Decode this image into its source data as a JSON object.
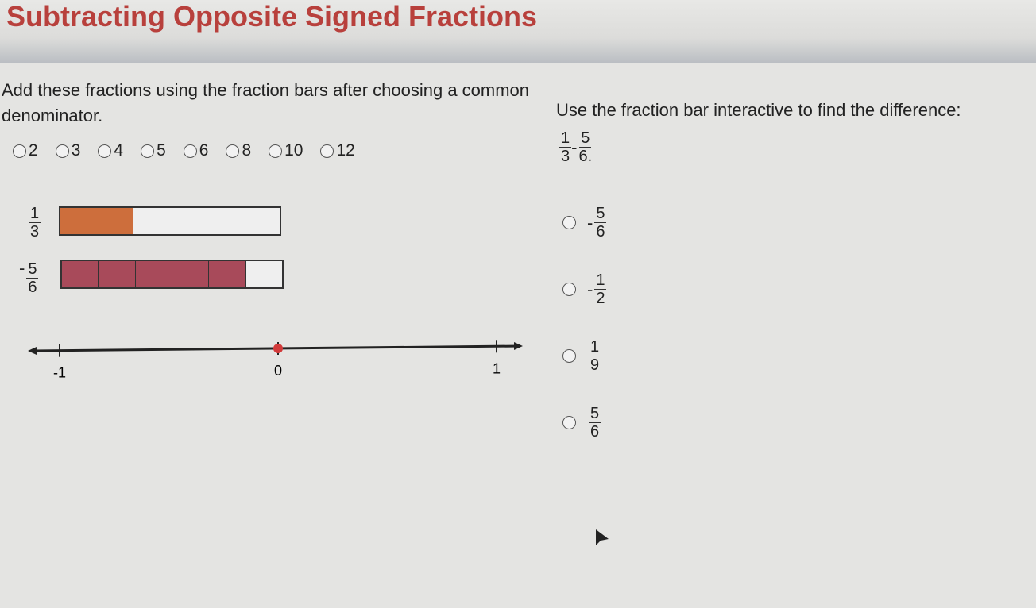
{
  "title": "Subtracting Opposite Signed Fractions",
  "instructions": "Add these fractions using the fraction bars after choosing a common denominator.",
  "denominators": [
    "2",
    "3",
    "4",
    "5",
    "6",
    "8",
    "10",
    "12"
  ],
  "bars": [
    {
      "label_sign": "",
      "num": "1",
      "den": "3",
      "parts": 3,
      "filled": 1,
      "color": "#cd6e3c"
    },
    {
      "label_sign": "-",
      "num": "5",
      "den": "6",
      "parts": 6,
      "filled": 5,
      "color": "#a84a5a"
    }
  ],
  "number_line": {
    "min": -1,
    "max": 1,
    "labels": [
      "-1",
      "0",
      "1"
    ],
    "point": 0,
    "point_color": "#d23a3a"
  },
  "question": {
    "prompt": "Use the fraction bar interactive to find the difference:",
    "expr": {
      "a_num": "1",
      "a_den": "3",
      "op": "-",
      "b_num": "5",
      "b_den": "6."
    },
    "options": [
      {
        "sign": "-",
        "num": "5",
        "den": "6"
      },
      {
        "sign": "-",
        "num": "1",
        "den": "2"
      },
      {
        "sign": "",
        "num": "1",
        "den": "9"
      },
      {
        "sign": "",
        "num": "5",
        "den": "6"
      }
    ]
  }
}
